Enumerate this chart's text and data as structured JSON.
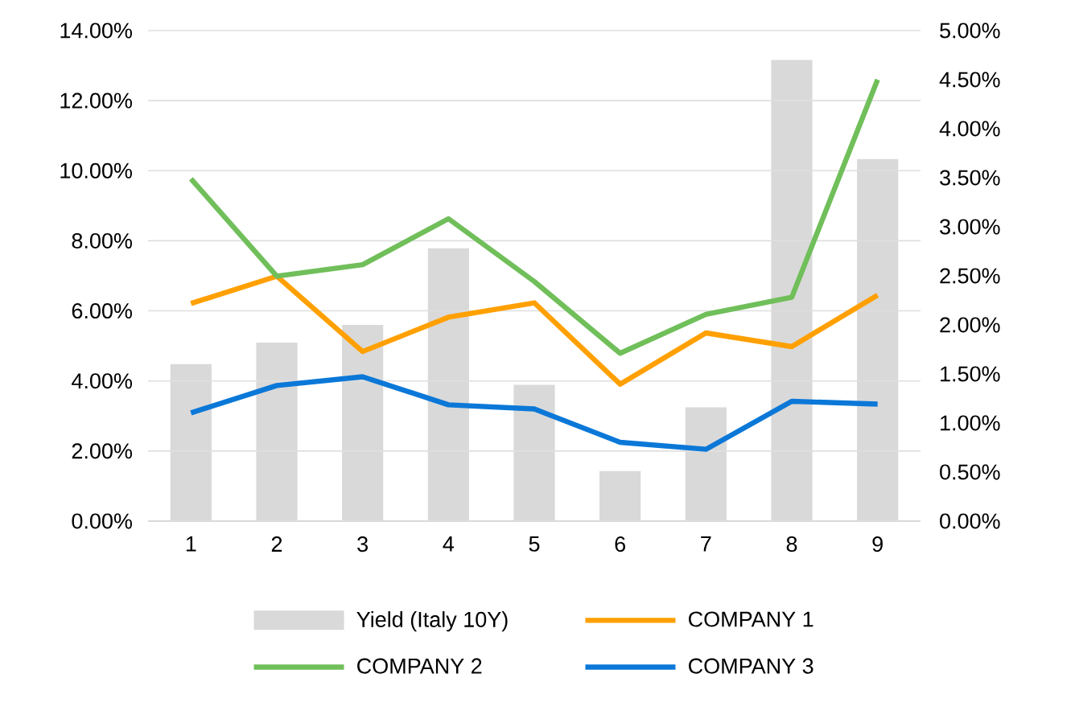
{
  "chart_data": {
    "type": "line",
    "categories": [
      "1",
      "2",
      "3",
      "4",
      "5",
      "6",
      "7",
      "8",
      "9"
    ],
    "series": [
      {
        "name": "Yield (Italy 10Y)",
        "type": "bar",
        "axis": "y2",
        "color": "#d9d9d9",
        "values": [
          1.6,
          1.82,
          2.0,
          2.78,
          1.39,
          0.51,
          1.16,
          4.7,
          3.69
        ]
      },
      {
        "name": "COMPANY 1",
        "axis": "y",
        "color": "#ffa000",
        "values": [
          6.21,
          6.99,
          4.84,
          5.82,
          6.23,
          3.91,
          5.37,
          4.98,
          6.45
        ]
      },
      {
        "name": "COMPANY 2",
        "axis": "y",
        "color": "#70bf5a",
        "values": [
          9.77,
          6.99,
          7.32,
          8.63,
          6.84,
          4.79,
          5.9,
          6.39,
          12.6
        ]
      },
      {
        "name": "COMPANY 3",
        "axis": "y",
        "color": "#0b78d8",
        "values": [
          3.09,
          3.87,
          4.12,
          3.32,
          3.2,
          2.25,
          2.05,
          3.42,
          3.34
        ]
      }
    ],
    "ylim": [
      0,
      14
    ],
    "yticks": [
      {
        "value": 0,
        "label": "0.00%"
      },
      {
        "value": 2,
        "label": "2.00%"
      },
      {
        "value": 4,
        "label": "4.00%"
      },
      {
        "value": 6,
        "label": "6.00%"
      },
      {
        "value": 8,
        "label": "8.00%"
      },
      {
        "value": 10,
        "label": "10.00%"
      },
      {
        "value": 12,
        "label": "12.00%"
      },
      {
        "value": 14,
        "label": "14.00%"
      }
    ],
    "y2lim": [
      0,
      5
    ],
    "y2ticks": [
      {
        "value": 0,
        "label": "0.00%"
      },
      {
        "value": 0.5,
        "label": "0.50%"
      },
      {
        "value": 1,
        "label": "1.00%"
      },
      {
        "value": 1.5,
        "label": "1.50%"
      },
      {
        "value": 2,
        "label": "2.00%"
      },
      {
        "value": 2.5,
        "label": "2.50%"
      },
      {
        "value": 3,
        "label": "3.00%"
      },
      {
        "value": 3.5,
        "label": "3.50%"
      },
      {
        "value": 4,
        "label": "4.00%"
      },
      {
        "value": 4.5,
        "label": "4.50%"
      },
      {
        "value": 5,
        "label": "5.00%"
      }
    ],
    "grid": "y",
    "legend": "bottom",
    "line_style": "solid"
  }
}
